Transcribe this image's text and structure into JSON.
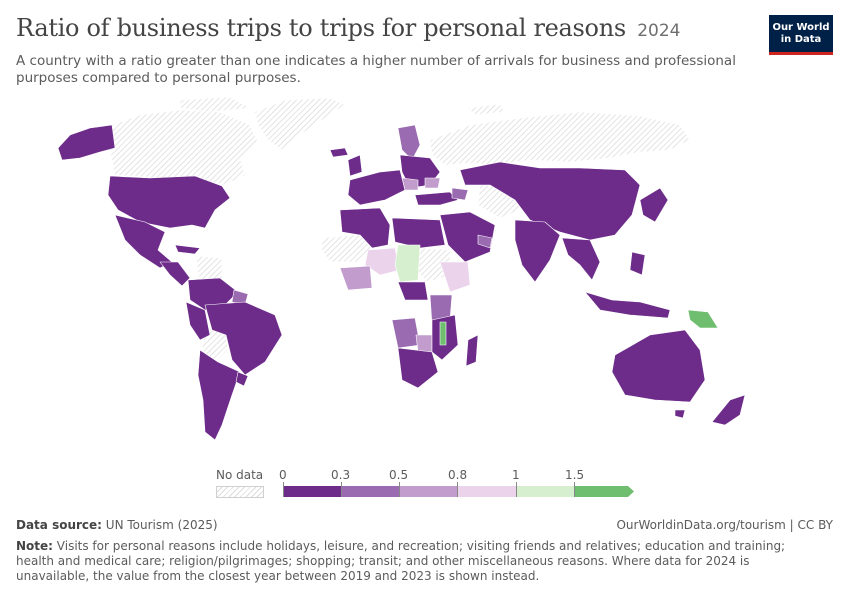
{
  "header": {
    "title": "Ratio of business trips to trips for personal reasons",
    "year": "2024",
    "subtitle": "A country with a ratio greater than one indicates a higher number of arrivals for business and professional purposes compared to personal purposes."
  },
  "logo": {
    "line1": "Our World",
    "line2": "in Data"
  },
  "legend": {
    "no_data_label": "No data",
    "ticks": [
      "0",
      "0.3",
      "0.5",
      "0.8",
      "1",
      "1.5"
    ],
    "colors": [
      "#6d2c8a",
      "#9a6bb0",
      "#c19ccd",
      "#ebd3ec",
      "#d5efcf",
      "#6fbd6f"
    ]
  },
  "footer": {
    "source_label": "Data source:",
    "source_text": "UN Tourism (2025)",
    "url_text": "OurWorldinData.org/tourism | CC BY",
    "note_label": "Note:",
    "note_text": "Visits for personal reasons include holidays, leisure, and recreation; visiting friends and relatives; education and training; health and medical care; religion/pilgrimages; shopping; transit; and other miscellaneous reasons. Where data for 2024 is unavailable, the value from the closest year between 2019 and 2023 is shown instead."
  },
  "map": {
    "colors": {
      "dark": "#6d2c8a",
      "mid": "#9a6bb0",
      "light": "#c19ccd",
      "pale": "#ebd3ec",
      "lightgreen": "#d5efcf",
      "green": "#6fbd6f",
      "nodata": "#f3f3f3"
    }
  }
}
